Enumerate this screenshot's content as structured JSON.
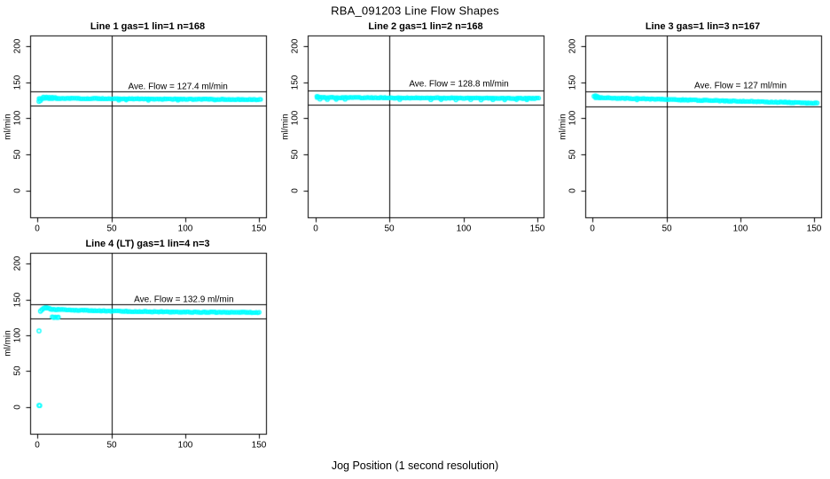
{
  "page": {
    "main_title": "RBA_091203  Line Flow Shapes",
    "x_axis_label": "Jog Position (1 second resolution)",
    "background_color": "#ffffff",
    "axis_color": "#000000",
    "point_color": "#00ffff"
  },
  "chart_data": [
    {
      "type": "scatter",
      "title": "Line 1 gas=1 lin=1 n=168",
      "ylabel": "ml/min",
      "ave_flow_ml_min": 127.4,
      "annotation": {
        "text": "Ave. Flow =  127.4  ml/min",
        "x": 95,
        "y": 144
      },
      "xticks": [
        0,
        50,
        100,
        150
      ],
      "yticks": [
        0,
        50,
        100,
        150,
        200
      ],
      "xlim": [
        -5.3,
        154.3
      ],
      "ylim": [
        -37.5,
        215
      ],
      "grid": false,
      "vline_x": 50,
      "hlines_y": [
        137.4,
        117.4
      ],
      "marker": {
        "shape": "open-circle",
        "color": "#00ffff",
        "radius": 1.9
      },
      "series": [
        {
          "name": "flow-band",
          "kind": "band",
          "x_start": 1,
          "x_end": 151,
          "x_step": 1,
          "y_start": 127.8,
          "y_end": 126.0,
          "noise": 0.45,
          "seed": 1
        },
        {
          "name": "notable-points",
          "kind": "points",
          "points": [
            [
              1,
              123.5
            ],
            [
              2,
              124.8
            ],
            [
              4,
              129.2
            ],
            [
              6,
              129.4
            ],
            [
              8,
              129.1
            ],
            [
              10,
              128.9
            ],
            [
              12,
              128.7
            ],
            [
              55,
              125.4
            ],
            [
              60,
              125.6
            ],
            [
              75,
              125.3
            ],
            [
              95,
              125.5
            ],
            [
              120,
              125.7
            ]
          ]
        }
      ]
    },
    {
      "type": "scatter",
      "title": "Line 2 gas=1 lin=2 n=168",
      "ylabel": "ml/min",
      "ave_flow_ml_min": 128.8,
      "annotation": {
        "text": "Ave. Flow =  128.8  ml/min",
        "x": 97,
        "y": 147
      },
      "xticks": [
        0,
        50,
        100,
        150
      ],
      "yticks": [
        0,
        50,
        100,
        150,
        200
      ],
      "xlim": [
        -5.3,
        154.3
      ],
      "ylim": [
        -37.5,
        215
      ],
      "grid": false,
      "vline_x": 50,
      "hlines_y": [
        138.8,
        118.8
      ],
      "marker": {
        "shape": "open-circle",
        "color": "#00ffff",
        "radius": 1.9
      },
      "series": [
        {
          "name": "flow-band",
          "kind": "band",
          "x_start": 1,
          "x_end": 151,
          "x_step": 1,
          "y_start": 128.9,
          "y_end": 127.6,
          "noise": 0.5,
          "seed": 2
        },
        {
          "name": "notable-points",
          "kind": "points",
          "points": [
            [
              1,
              130.2
            ],
            [
              2,
              129.6
            ],
            [
              3,
              126.6
            ],
            [
              8,
              126.3
            ],
            [
              14,
              126.5
            ],
            [
              20,
              126.7
            ],
            [
              57,
              126.4
            ],
            [
              78,
              126.0
            ],
            [
              85,
              126.2
            ],
            [
              95,
              125.9
            ],
            [
              105,
              126.1
            ],
            [
              112,
              125.8
            ],
            [
              120,
              126.0
            ],
            [
              128,
              125.9
            ],
            [
              136,
              126.2
            ],
            [
              143,
              126.0
            ]
          ]
        }
      ]
    },
    {
      "type": "scatter",
      "title": "Line 3 gas=1 lin=3 n=167",
      "ylabel": "ml/min",
      "ave_flow_ml_min": 127,
      "annotation": {
        "text": "Ave. Flow =  127  ml/min",
        "x": 100,
        "y": 145
      },
      "xticks": [
        0,
        50,
        100,
        150
      ],
      "yticks": [
        0,
        50,
        100,
        150,
        200
      ],
      "xlim": [
        -5.3,
        154.3
      ],
      "ylim": [
        -37.5,
        215
      ],
      "grid": false,
      "vline_x": 50,
      "hlines_y": [
        137,
        117
      ],
      "marker": {
        "shape": "open-circle",
        "color": "#00ffff",
        "radius": 1.9
      },
      "series": [
        {
          "name": "flow-band",
          "kind": "band",
          "x_start": 2,
          "x_end": 152,
          "x_step": 1,
          "y_start": 128.8,
          "y_end": 121.0,
          "noise": 0.55,
          "seed": 3
        },
        {
          "name": "notable-points",
          "kind": "points",
          "points": [
            [
              1,
              130.6
            ],
            [
              2,
              131.1
            ],
            [
              2,
              129.4
            ],
            [
              3,
              130.2
            ],
            [
              4,
              129.3
            ],
            [
              30,
              125.9
            ],
            [
              60,
              125.4
            ],
            [
              90,
              124.2
            ],
            [
              130,
              122.4
            ]
          ]
        }
      ]
    },
    {
      "type": "scatter",
      "title": "Line 4 (LT) gas=1 lin=4 n=3",
      "ylabel": "ml/min",
      "ave_flow_ml_min": 132.9,
      "annotation": {
        "text": "Ave. Flow =  132.9  ml/min",
        "x": 99,
        "y": 150
      },
      "xticks": [
        0,
        50,
        100,
        150
      ],
      "yticks": [
        0,
        50,
        100,
        150,
        200
      ],
      "xlim": [
        -5.3,
        154.3
      ],
      "ylim": [
        -37.5,
        215
      ],
      "grid": false,
      "vline_x": 50,
      "hlines_y": [
        142.9,
        122.9
      ],
      "marker": {
        "shape": "open-circle",
        "color": "#00ffff",
        "radius": 1.9
      },
      "series": [
        {
          "name": "flow-band",
          "kind": "band",
          "x_start": 10,
          "x_end": 150,
          "x_step": 1,
          "y_start": 136.2,
          "y_end": 131.4,
          "tau": 55,
          "noise": 0.5,
          "seed": 4
        },
        {
          "name": "notable-points",
          "kind": "points",
          "points": [
            [
              1,
              2
            ],
            [
              1.5,
              1.8
            ],
            [
              1,
              106
            ],
            [
              2,
              133.5
            ],
            [
              3,
              135.6
            ],
            [
              4,
              137.2
            ],
            [
              5,
              138.1
            ],
            [
              6,
              138.3
            ],
            [
              7,
              138.0
            ],
            [
              8,
              137.2
            ],
            [
              9,
              136.4
            ],
            [
              10,
              125.5
            ],
            [
              11,
              124.8
            ],
            [
              12,
              125.3
            ],
            [
              13,
              125.0
            ],
            [
              14,
              125.1
            ]
          ]
        }
      ]
    }
  ]
}
